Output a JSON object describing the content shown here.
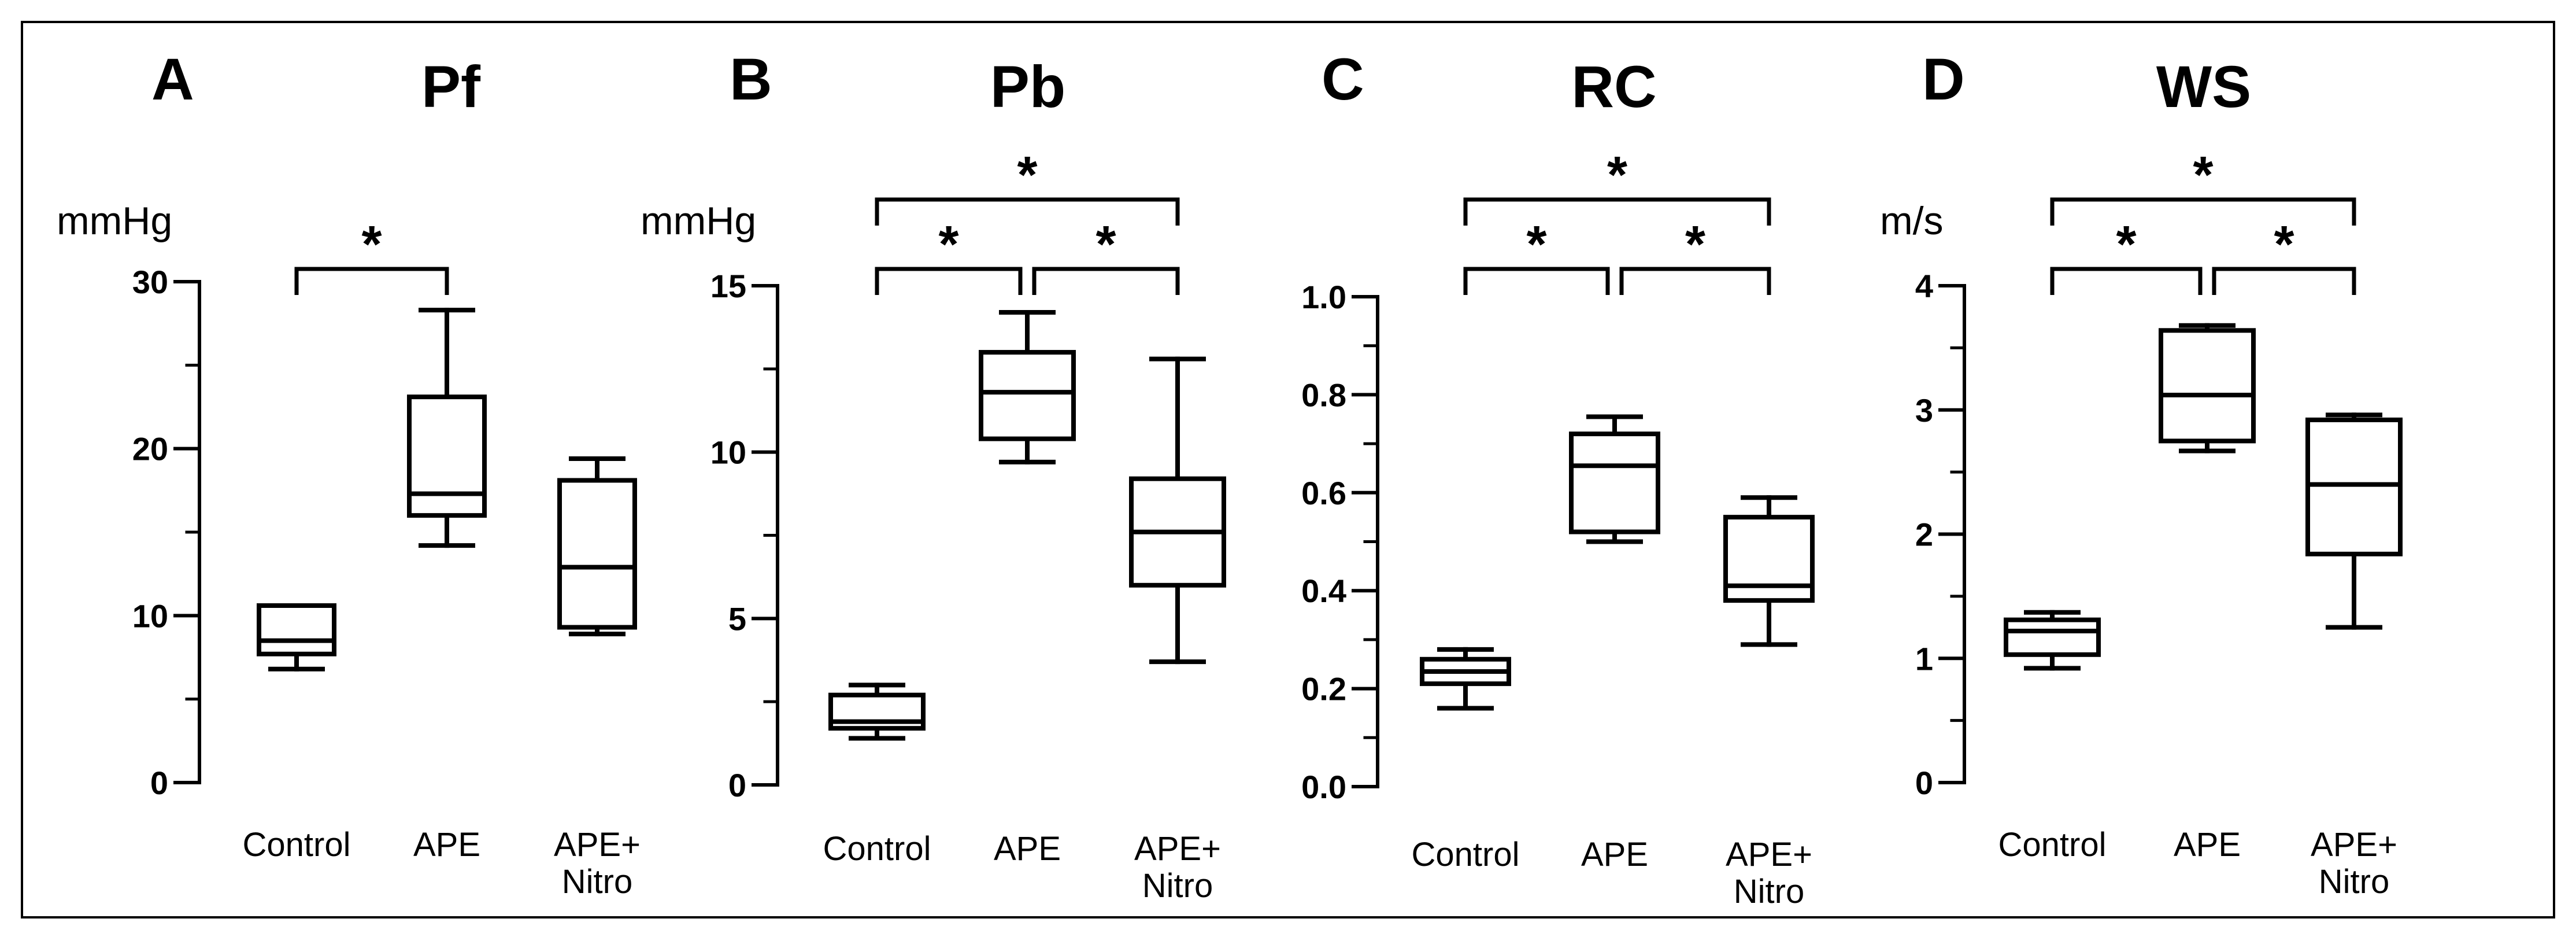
{
  "figure": {
    "panels": [
      {
        "letter": "A",
        "title": "Pf",
        "unit": "mmHg",
        "categories": [
          "Control",
          "APE",
          "APE+ Nitro"
        ],
        "category_lines": [
          [
            "Control"
          ],
          [
            "APE"
          ],
          [
            "APE+",
            "Nitro"
          ]
        ]
      },
      {
        "letter": "B",
        "title": "Pb",
        "unit": "mmHg",
        "categories": [
          "Control",
          "APE",
          "APE+ Nitro"
        ],
        "category_lines": [
          [
            "Control"
          ],
          [
            "APE"
          ],
          [
            "APE+",
            "Nitro"
          ]
        ]
      },
      {
        "letter": "C",
        "title": "RC",
        "unit": "",
        "categories": [
          "Control",
          "APE",
          "APE+ Nitro"
        ],
        "category_lines": [
          [
            "Control"
          ],
          [
            "APE"
          ],
          [
            "APE+",
            "Nitro"
          ]
        ]
      },
      {
        "letter": "D",
        "title": "WS",
        "unit": "m/s",
        "categories": [
          "Control",
          "APE",
          "APE+ Nitro"
        ],
        "category_lines": [
          [
            "Control"
          ],
          [
            "APE"
          ],
          [
            "APE+",
            "Nitro"
          ]
        ]
      }
    ]
  },
  "chart_data": [
    {
      "type": "box",
      "title": "Pf",
      "panel": "A",
      "ylabel": "mmHg",
      "ylim": [
        0,
        30
      ],
      "yticks": [
        0,
        10,
        20,
        30
      ],
      "ytick_labels": [
        "0",
        "10",
        "20",
        "30"
      ],
      "minor_step": 5,
      "categories": [
        "Control",
        "APE",
        "APE+ Nitro"
      ],
      "boxes": [
        {
          "min": 6.8,
          "q1": 7.7,
          "median": 8.5,
          "q3": 10.6,
          "max": 10.6
        },
        {
          "min": 14.2,
          "q1": 16.0,
          "median": 17.3,
          "q3": 23.1,
          "max": 28.3
        },
        {
          "min": 8.9,
          "q1": 9.3,
          "median": 12.9,
          "q3": 18.1,
          "max": 19.4
        }
      ],
      "significance": [
        {
          "from": 0,
          "to": 1,
          "label": "*",
          "level": 1
        }
      ]
    },
    {
      "type": "box",
      "title": "Pb",
      "panel": "B",
      "ylabel": "mmHg",
      "ylim": [
        0,
        15
      ],
      "yticks": [
        0,
        5,
        10,
        15
      ],
      "ytick_labels": [
        "0",
        "5",
        "10",
        "15"
      ],
      "minor_step": 2.5,
      "categories": [
        "Control",
        "APE",
        "APE+ Nitro"
      ],
      "boxes": [
        {
          "min": 1.4,
          "q1": 1.7,
          "median": 1.9,
          "q3": 2.7,
          "max": 3.0
        },
        {
          "min": 9.7,
          "q1": 10.4,
          "median": 11.8,
          "q3": 13.0,
          "max": 14.2
        },
        {
          "min": 3.7,
          "q1": 6.0,
          "median": 7.6,
          "q3": 9.2,
          "max": 12.8
        }
      ],
      "significance": [
        {
          "from": 0,
          "to": 1,
          "label": "*",
          "level": 1
        },
        {
          "from": 1,
          "to": 2,
          "label": "*",
          "level": 1
        },
        {
          "from": 0,
          "to": 2,
          "label": "*",
          "level": 2
        }
      ]
    },
    {
      "type": "box",
      "title": "RC",
      "panel": "C",
      "ylabel": "",
      "ylim": [
        0,
        1.0
      ],
      "yticks": [
        0,
        0.2,
        0.4,
        0.6,
        0.8,
        1.0
      ],
      "ytick_labels": [
        "0.0",
        "0.2",
        "0.4",
        "0.6",
        "0.8",
        "1.0"
      ],
      "minor_step": 0.1,
      "categories": [
        "Control",
        "APE",
        "APE+ Nitro"
      ],
      "boxes": [
        {
          "min": 0.16,
          "q1": 0.21,
          "median": 0.235,
          "q3": 0.26,
          "max": 0.28
        },
        {
          "min": 0.5,
          "q1": 0.52,
          "median": 0.655,
          "q3": 0.72,
          "max": 0.755
        },
        {
          "min": 0.29,
          "q1": 0.38,
          "median": 0.41,
          "q3": 0.55,
          "max": 0.59
        }
      ],
      "significance": [
        {
          "from": 0,
          "to": 1,
          "label": "*",
          "level": 1
        },
        {
          "from": 1,
          "to": 2,
          "label": "*",
          "level": 1
        },
        {
          "from": 0,
          "to": 2,
          "label": "*",
          "level": 2
        }
      ]
    },
    {
      "type": "box",
      "title": "WS",
      "panel": "D",
      "ylabel": "m/s",
      "ylim": [
        0,
        4
      ],
      "yticks": [
        0,
        1,
        2,
        3,
        4
      ],
      "ytick_labels": [
        "0",
        "1",
        "2",
        "3",
        "4"
      ],
      "minor_step": 0.5,
      "categories": [
        "Control",
        "APE",
        "APE+ Nitro"
      ],
      "boxes": [
        {
          "min": 0.92,
          "q1": 1.03,
          "median": 1.22,
          "q3": 1.31,
          "max": 1.37
        },
        {
          "min": 2.67,
          "q1": 2.75,
          "median": 3.12,
          "q3": 3.64,
          "max": 3.68
        },
        {
          "min": 1.25,
          "q1": 1.84,
          "median": 2.4,
          "q3": 2.92,
          "max": 2.96
        }
      ],
      "significance": [
        {
          "from": 0,
          "to": 1,
          "label": "*",
          "level": 1
        },
        {
          "from": 1,
          "to": 2,
          "label": "*",
          "level": 1
        },
        {
          "from": 0,
          "to": 2,
          "label": "*",
          "level": 2
        }
      ]
    }
  ]
}
